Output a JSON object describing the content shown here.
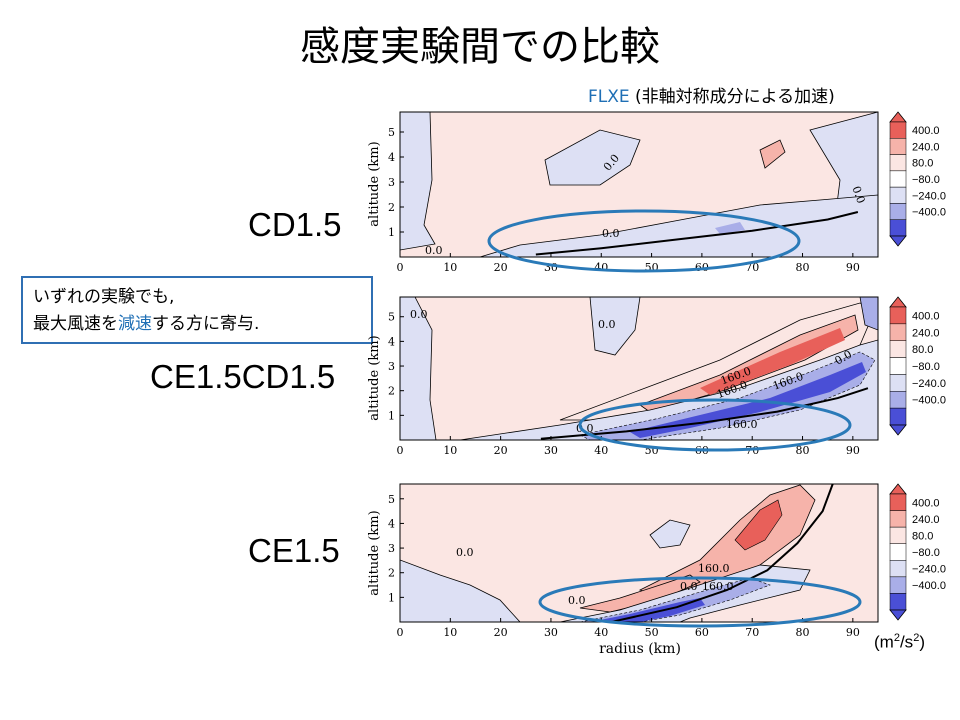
{
  "slide": {
    "title": "感度実験間での比較",
    "subtitle_flxe": "FLXE",
    "subtitle_rest": " (非軸対称成分による加速)",
    "note_line1": "いずれの実験でも,",
    "note_line2_a": "最大風速を",
    "note_line2_b": "減速",
    "note_line2_c": "する方に寄与.",
    "units_prefix": "(m",
    "units_exp1": "2",
    "units_mid": "/s",
    "units_exp2": "2",
    "units_suffix": ")"
  },
  "colors": {
    "accent_blue": "#1f6fb5",
    "ellipse": "#2a7ab8",
    "pos_light": "#fbe6e3",
    "pos_mid": "#f6b3aa",
    "pos_strong": "#e8605a",
    "neg_light": "#dde0f4",
    "neg_mid": "#a9aee8",
    "neg_strong": "#4a4fd6"
  },
  "chart_data": [
    {
      "type": "heatmap",
      "label": "CD1.5",
      "title": "FLXE",
      "xlabel": "",
      "ylabel": "altitude (km)",
      "xlim": [
        0,
        95
      ],
      "ylim": [
        0,
        5.8
      ],
      "xticks": [
        "0",
        "10",
        "20",
        "30",
        "40",
        "50",
        "60",
        "70",
        "80",
        "90"
      ],
      "yticks": [
        "1",
        "2",
        "3",
        "4",
        "5"
      ],
      "contour_labels": [
        "0.0",
        "0.0",
        "0.0",
        "0.0",
        "0.0"
      ],
      "colorbar_ticks": [
        "400.0",
        "240.0",
        "80.0",
        "−80.0",
        "−240.0",
        "−400.0"
      ],
      "rmw_curve": [
        [
          27,
          0.1
        ],
        [
          40,
          0.35
        ],
        [
          55,
          0.7
        ],
        [
          70,
          1.05
        ],
        [
          85,
          1.5
        ],
        [
          91,
          1.8
        ]
      ]
    },
    {
      "type": "heatmap",
      "label": "CE1.5CD1.5",
      "xlabel": "",
      "ylabel": "altitude (km)",
      "xlim": [
        0,
        95
      ],
      "ylim": [
        0,
        5.8
      ],
      "xticks": [
        "0",
        "10",
        "20",
        "30",
        "40",
        "50",
        "60",
        "70",
        "80",
        "90"
      ],
      "yticks": [
        "1",
        "2",
        "3",
        "4",
        "5"
      ],
      "contour_labels": [
        "0.0",
        "0.0",
        "0.0",
        "160.0",
        "160.0",
        "160.0",
        "160.0",
        "0.0"
      ],
      "colorbar_ticks": [
        "400.0",
        "240.0",
        "80.0",
        "−80.0",
        "−240.0",
        "−400.0"
      ],
      "rmw_curve": [
        [
          28,
          0.05
        ],
        [
          45,
          0.35
        ],
        [
          60,
          0.7
        ],
        [
          75,
          1.15
        ],
        [
          87,
          1.7
        ],
        [
          93,
          2.1
        ]
      ]
    },
    {
      "type": "heatmap",
      "label": "CE1.5",
      "xlabel": "radius (km)",
      "ylabel": "altitude (km)",
      "xlim": [
        0,
        95
      ],
      "ylim": [
        0,
        5.6
      ],
      "xticks": [
        "0",
        "10",
        "20",
        "30",
        "40",
        "50",
        "60",
        "70",
        "80",
        "90"
      ],
      "yticks": [
        "1",
        "2",
        "3",
        "4",
        "5"
      ],
      "contour_labels": [
        "0.0",
        "0.0",
        "160.0",
        "0.0",
        "160.0"
      ],
      "colorbar_ticks": [
        "400.0",
        "240.0",
        "80.0",
        "−80.0",
        "−240.0",
        "−400.0"
      ],
      "rmw_curve": [
        [
          42,
          0.0
        ],
        [
          55,
          0.6
        ],
        [
          65,
          1.3
        ],
        [
          73,
          2.1
        ],
        [
          79,
          3.2
        ],
        [
          84,
          4.5
        ],
        [
          86,
          5.6
        ]
      ]
    }
  ]
}
